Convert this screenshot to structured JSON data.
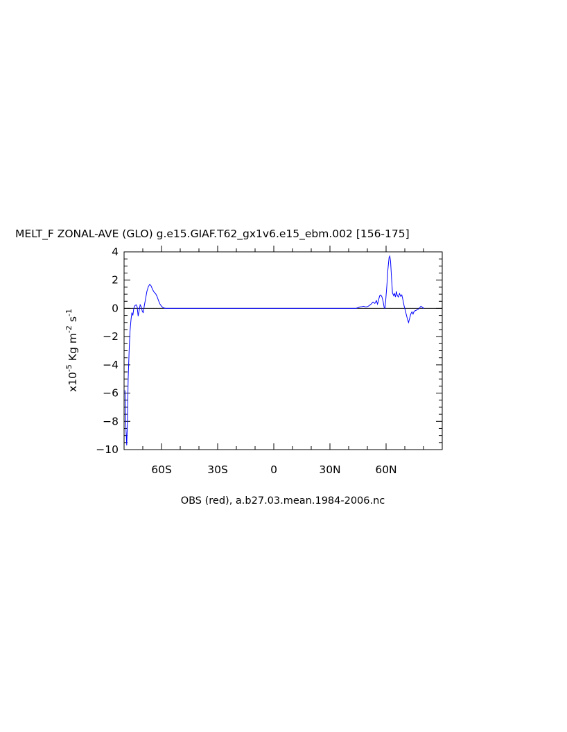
{
  "chart_data": {
    "type": "line",
    "title": "MELT_F ZONAL-AVE (GLO) g.e15.GIAF.T62_gx1v6.e15_ebm.002 [156-175]",
    "ylabel_prefix": "x10",
    "ylabel_exp": "-5",
    "ylabel_unit_a": "Kg m",
    "ylabel_unit_a_exp": "-2",
    "ylabel_unit_b": "s",
    "ylabel_unit_b_exp": "-1",
    "xlabel": "OBS (red), a.b27.03.mean.1984-2006.nc",
    "xlim": [
      -80,
      90
    ],
    "ylim": [
      -10,
      4
    ],
    "x_ticks": [
      {
        "value": -60,
        "label": "60S"
      },
      {
        "value": -30,
        "label": "30S"
      },
      {
        "value": 0,
        "label": "0"
      },
      {
        "value": 30,
        "label": "30N"
      },
      {
        "value": 60,
        "label": "60N"
      }
    ],
    "y_ticks": [
      {
        "value": -10,
        "label": "−10"
      },
      {
        "value": -8,
        "label": "−8"
      },
      {
        "value": -6,
        "label": "−6"
      },
      {
        "value": -4,
        "label": "−4"
      },
      {
        "value": -2,
        "label": "−2"
      },
      {
        "value": 0,
        "label": "0"
      },
      {
        "value": 2,
        "label": "2"
      },
      {
        "value": 4,
        "label": "4"
      }
    ],
    "reference_line": 0,
    "series": [
      {
        "color": "#0000ff",
        "points": [
          [
            -79.5,
            -5.8
          ],
          [
            -79.0,
            -8.5
          ],
          [
            -78.6,
            -9.7
          ],
          [
            -78.2,
            -8.0
          ],
          [
            -77.8,
            -5.0
          ],
          [
            -77.3,
            -3.0
          ],
          [
            -76.8,
            -1.6
          ],
          [
            -76.3,
            -0.8
          ],
          [
            -75.8,
            -0.3
          ],
          [
            -75.3,
            -0.5
          ],
          [
            -74.8,
            0.0
          ],
          [
            -74.2,
            0.2
          ],
          [
            -73.5,
            0.25
          ],
          [
            -73.0,
            0.1
          ],
          [
            -72.5,
            -0.55
          ],
          [
            -72.0,
            -0.2
          ],
          [
            -71.4,
            0.25
          ],
          [
            -70.8,
            0.1
          ],
          [
            -70.2,
            -0.25
          ],
          [
            -69.7,
            -0.3
          ],
          [
            -69.2,
            0.2
          ],
          [
            -68.5,
            0.7
          ],
          [
            -67.8,
            1.2
          ],
          [
            -67.0,
            1.55
          ],
          [
            -66.3,
            1.7
          ],
          [
            -65.6,
            1.6
          ],
          [
            -64.8,
            1.35
          ],
          [
            -64.0,
            1.15
          ],
          [
            -63.2,
            1.05
          ],
          [
            -62.4,
            0.85
          ],
          [
            -61.6,
            0.55
          ],
          [
            -60.8,
            0.3
          ],
          [
            -60.0,
            0.15
          ],
          [
            -59.2,
            0.05
          ],
          [
            -58.0,
            0.0
          ],
          [
            -50,
            0.0
          ],
          [
            -30,
            0.0
          ],
          [
            0,
            0.0
          ],
          [
            30,
            0.0
          ],
          [
            44.0,
            0.0
          ],
          [
            45.0,
            0.05
          ],
          [
            46.0,
            0.1
          ],
          [
            47.0,
            0.12
          ],
          [
            48.0,
            0.15
          ],
          [
            49.0,
            0.1
          ],
          [
            50.0,
            0.12
          ],
          [
            51.0,
            0.2
          ],
          [
            52.0,
            0.3
          ],
          [
            53.0,
            0.45
          ],
          [
            54.0,
            0.35
          ],
          [
            54.8,
            0.55
          ],
          [
            55.4,
            0.3
          ],
          [
            56.0,
            0.6
          ],
          [
            56.6,
            0.9
          ],
          [
            57.2,
            0.95
          ],
          [
            57.8,
            0.8
          ],
          [
            58.4,
            0.5
          ],
          [
            59.0,
            0.05
          ],
          [
            59.4,
            0.0
          ],
          [
            59.8,
            0.6
          ],
          [
            60.4,
            1.6
          ],
          [
            61.0,
            2.8
          ],
          [
            61.6,
            3.6
          ],
          [
            62.0,
            3.7
          ],
          [
            62.4,
            3.3
          ],
          [
            62.9,
            2.2
          ],
          [
            63.4,
            1.1
          ],
          [
            64.0,
            0.9
          ],
          [
            64.5,
            1.05
          ],
          [
            65.0,
            0.8
          ],
          [
            65.5,
            1.2
          ],
          [
            66.0,
            0.9
          ],
          [
            66.6,
            0.8
          ],
          [
            67.2,
            1.05
          ],
          [
            67.8,
            0.85
          ],
          [
            68.4,
            0.95
          ],
          [
            69.0,
            0.6
          ],
          [
            69.6,
            0.2
          ],
          [
            70.2,
            -0.1
          ],
          [
            70.8,
            -0.45
          ],
          [
            71.4,
            -0.75
          ],
          [
            72.0,
            -1.0
          ],
          [
            72.6,
            -0.7
          ],
          [
            73.2,
            -0.4
          ],
          [
            73.8,
            -0.25
          ],
          [
            74.4,
            -0.4
          ],
          [
            75.0,
            -0.2
          ],
          [
            75.8,
            -0.15
          ],
          [
            76.6,
            -0.1
          ],
          [
            77.4,
            -0.05
          ],
          [
            78.0,
            0.05
          ],
          [
            78.6,
            0.15
          ],
          [
            79.2,
            0.1
          ],
          [
            79.8,
            0.0
          ],
          [
            80.2,
            0.05
          ]
        ]
      }
    ]
  }
}
